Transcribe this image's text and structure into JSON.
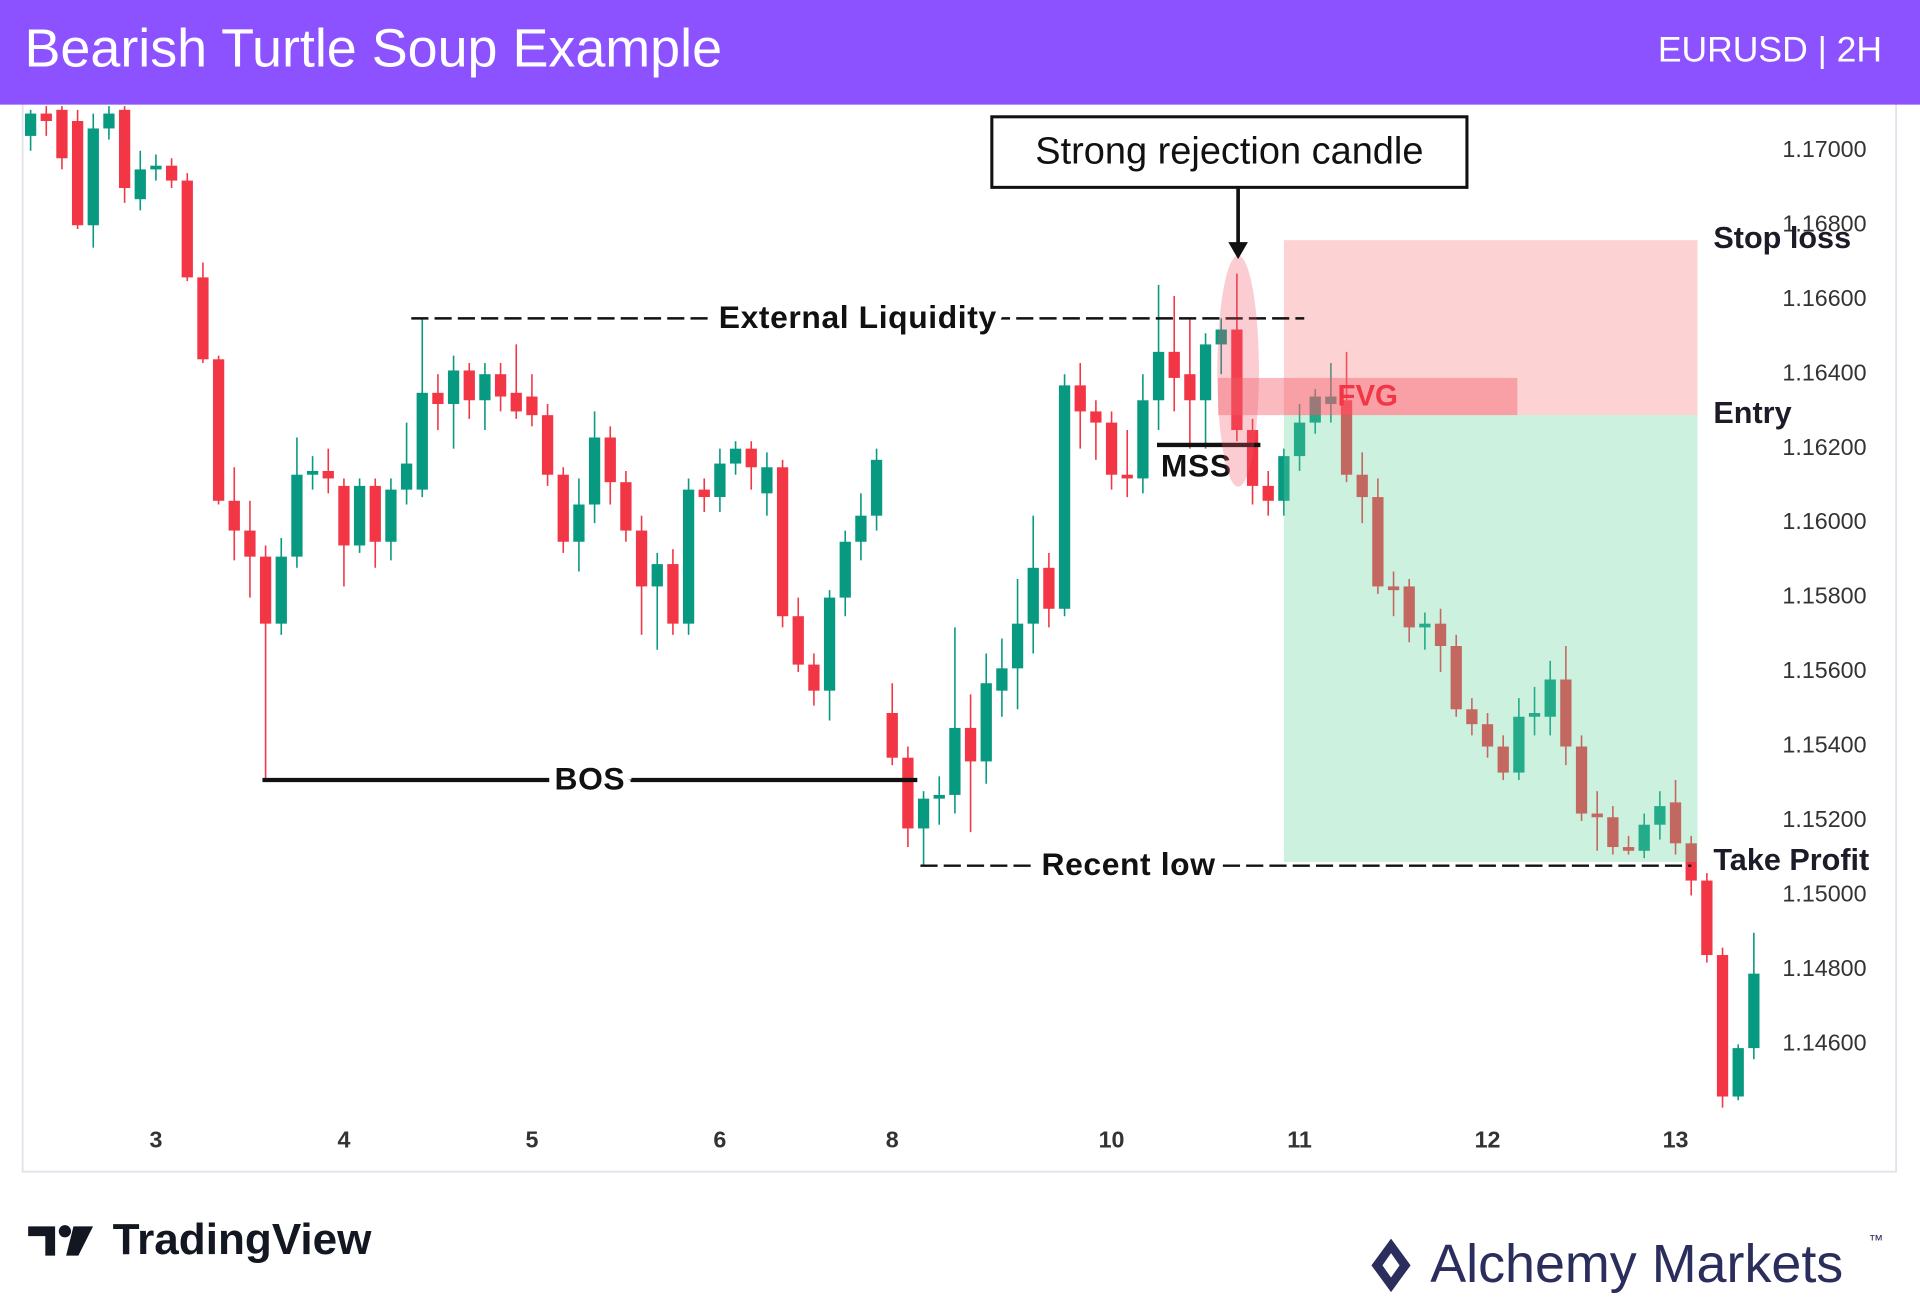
{
  "header": {
    "title": "Bearish Turtle Soup Example",
    "symbol": "EURUSD | 2H"
  },
  "chart_data": {
    "type": "candlestick",
    "up_color": "#089981",
    "down_color": "#f23645",
    "xlim": [
      -0.5,
      110.6
    ],
    "ylim": [
      1.14268,
      1.17124
    ],
    "yticks": [
      {
        "value": 1.17,
        "label": "1.17000"
      },
      {
        "value": 1.168,
        "label": "1.16800"
      },
      {
        "value": 1.166,
        "label": "1.16600"
      },
      {
        "value": 1.164,
        "label": "1.16400"
      },
      {
        "value": 1.162,
        "label": "1.16200"
      },
      {
        "value": 1.16,
        "label": "1.16000"
      },
      {
        "value": 1.158,
        "label": "1.15800"
      },
      {
        "value": 1.156,
        "label": "1.15600"
      },
      {
        "value": 1.154,
        "label": "1.15400"
      },
      {
        "value": 1.152,
        "label": "1.15200"
      },
      {
        "value": 1.15,
        "label": "1.15000"
      },
      {
        "value": 1.148,
        "label": "1.14800"
      },
      {
        "value": 1.146,
        "label": "1.14600"
      }
    ],
    "xticks": [
      {
        "value": 8,
        "label": "3"
      },
      {
        "value": 20,
        "label": "4"
      },
      {
        "value": 32,
        "label": "5"
      },
      {
        "value": 44,
        "label": "6"
      },
      {
        "value": 55,
        "label": "8"
      },
      {
        "value": 69,
        "label": "10"
      },
      {
        "value": 81,
        "label": "11"
      },
      {
        "value": 93,
        "label": "12"
      },
      {
        "value": 105,
        "label": "13"
      }
    ],
    "candles": [
      [
        1.1704,
        1.1711,
        1.17,
        1.171
      ],
      [
        1.171,
        1.1712,
        1.1704,
        1.1708
      ],
      [
        1.1711,
        1.1712,
        1.1695,
        1.1698
      ],
      [
        1.1708,
        1.1711,
        1.1679,
        1.168
      ],
      [
        1.168,
        1.171,
        1.1674,
        1.1706
      ],
      [
        1.1706,
        1.1712,
        1.1703,
        1.171
      ],
      [
        1.1711,
        1.1712,
        1.1686,
        1.169
      ],
      [
        1.1687,
        1.17,
        1.1684,
        1.1695
      ],
      [
        1.1695,
        1.1699,
        1.1692,
        1.1696
      ],
      [
        1.1696,
        1.1698,
        1.169,
        1.1692
      ],
      [
        1.1692,
        1.1694,
        1.1665,
        1.1666
      ],
      [
        1.1666,
        1.167,
        1.1643,
        1.1644
      ],
      [
        1.1644,
        1.1645,
        1.1605,
        1.1606
      ],
      [
        1.1606,
        1.1615,
        1.159,
        1.1598
      ],
      [
        1.1598,
        1.1606,
        1.158,
        1.1591
      ],
      [
        1.1591,
        1.1594,
        1.1531,
        1.1573
      ],
      [
        1.1573,
        1.1596,
        1.157,
        1.1591
      ],
      [
        1.1591,
        1.1623,
        1.1588,
        1.1613
      ],
      [
        1.1613,
        1.1618,
        1.1609,
        1.1614
      ],
      [
        1.1614,
        1.162,
        1.1608,
        1.1612
      ],
      [
        1.161,
        1.1612,
        1.1583,
        1.1594
      ],
      [
        1.1594,
        1.1612,
        1.1592,
        1.161
      ],
      [
        1.161,
        1.1612,
        1.1588,
        1.1595
      ],
      [
        1.1595,
        1.1612,
        1.159,
        1.1609
      ],
      [
        1.1609,
        1.1627,
        1.1605,
        1.1616
      ],
      [
        1.1609,
        1.1655,
        1.1607,
        1.1635
      ],
      [
        1.1635,
        1.164,
        1.1625,
        1.1632
      ],
      [
        1.1632,
        1.1645,
        1.162,
        1.1641
      ],
      [
        1.1641,
        1.1643,
        1.1628,
        1.1633
      ],
      [
        1.1633,
        1.1643,
        1.1625,
        1.164
      ],
      [
        1.164,
        1.1643,
        1.163,
        1.1634
      ],
      [
        1.1635,
        1.1648,
        1.1628,
        1.163
      ],
      [
        1.1634,
        1.164,
        1.1626,
        1.1629
      ],
      [
        1.1629,
        1.1632,
        1.161,
        1.1613
      ],
      [
        1.1613,
        1.1615,
        1.1592,
        1.1595
      ],
      [
        1.1595,
        1.1612,
        1.1587,
        1.1605
      ],
      [
        1.1605,
        1.163,
        1.16,
        1.1623
      ],
      [
        1.1623,
        1.1626,
        1.1605,
        1.1611
      ],
      [
        1.1611,
        1.1614,
        1.1595,
        1.1598
      ],
      [
        1.1598,
        1.1602,
        1.157,
        1.1583
      ],
      [
        1.1583,
        1.1592,
        1.1566,
        1.1589
      ],
      [
        1.1589,
        1.1593,
        1.157,
        1.1573
      ],
      [
        1.1573,
        1.1612,
        1.157,
        1.1609
      ],
      [
        1.1609,
        1.1612,
        1.1603,
        1.1607
      ],
      [
        1.1607,
        1.162,
        1.1603,
        1.1616
      ],
      [
        1.1616,
        1.1622,
        1.1613,
        1.162
      ],
      [
        1.162,
        1.1622,
        1.1609,
        1.1615
      ],
      [
        1.1608,
        1.1619,
        1.1602,
        1.1615
      ],
      [
        1.1615,
        1.1617,
        1.1572,
        1.1575
      ],
      [
        1.1575,
        1.158,
        1.156,
        1.1562
      ],
      [
        1.1562,
        1.1565,
        1.1551,
        1.1555
      ],
      [
        1.1555,
        1.1582,
        1.1547,
        1.158
      ],
      [
        1.158,
        1.1598,
        1.1575,
        1.1595
      ],
      [
        1.1595,
        1.1608,
        1.159,
        1.1602
      ],
      [
        1.1602,
        1.162,
        1.1598,
        1.1617
      ],
      [
        1.1549,
        1.1557,
        1.1535,
        1.1537
      ],
      [
        1.1537,
        1.154,
        1.1513,
        1.1518
      ],
      [
        1.1518,
        1.1528,
        1.1508,
        1.1526
      ],
      [
        1.1526,
        1.1532,
        1.1519,
        1.1527
      ],
      [
        1.1527,
        1.1572,
        1.1522,
        1.1545
      ],
      [
        1.1545,
        1.1554,
        1.1517,
        1.1536
      ],
      [
        1.1536,
        1.1565,
        1.153,
        1.1557
      ],
      [
        1.1555,
        1.1569,
        1.1548,
        1.1561
      ],
      [
        1.1561,
        1.1585,
        1.155,
        1.1573
      ],
      [
        1.1573,
        1.1602,
        1.1565,
        1.1588
      ],
      [
        1.1588,
        1.1592,
        1.1572,
        1.1577
      ],
      [
        1.1577,
        1.164,
        1.1575,
        1.1637
      ],
      [
        1.1637,
        1.1643,
        1.162,
        1.163
      ],
      [
        1.163,
        1.1633,
        1.1617,
        1.1627
      ],
      [
        1.1627,
        1.163,
        1.1609,
        1.1613
      ],
      [
        1.1613,
        1.1625,
        1.1607,
        1.1612
      ],
      [
        1.1612,
        1.164,
        1.1608,
        1.1633
      ],
      [
        1.1633,
        1.1664,
        1.1625,
        1.1646
      ],
      [
        1.1646,
        1.1661,
        1.163,
        1.1639
      ],
      [
        1.164,
        1.1655,
        1.162,
        1.1633
      ],
      [
        1.1633,
        1.1651,
        1.162,
        1.1648
      ],
      [
        1.1648,
        1.1655,
        1.164,
        1.1652
      ],
      [
        1.1652,
        1.1667,
        1.1622,
        1.1625
      ],
      [
        1.1625,
        1.1628,
        1.1605,
        1.161
      ],
      [
        1.161,
        1.1614,
        1.1602,
        1.1606
      ],
      [
        1.1606,
        1.162,
        1.1602,
        1.1618
      ],
      [
        1.1618,
        1.1632,
        1.1614,
        1.1627
      ],
      [
        1.1627,
        1.1636,
        1.1624,
        1.1634
      ],
      [
        1.1632,
        1.1643,
        1.1627,
        1.1634
      ],
      [
        1.1633,
        1.1646,
        1.1611,
        1.1613
      ],
      [
        1.1613,
        1.1619,
        1.16,
        1.1607
      ],
      [
        1.1607,
        1.1612,
        1.1581,
        1.1583
      ],
      [
        1.1583,
        1.1587,
        1.1575,
        1.1582
      ],
      [
        1.1583,
        1.1585,
        1.1568,
        1.1572
      ],
      [
        1.1572,
        1.1576,
        1.1566,
        1.1573
      ],
      [
        1.1573,
        1.1577,
        1.156,
        1.1567
      ],
      [
        1.1567,
        1.157,
        1.1548,
        1.155
      ],
      [
        1.155,
        1.1553,
        1.1543,
        1.1546
      ],
      [
        1.1546,
        1.1549,
        1.1537,
        1.154
      ],
      [
        1.154,
        1.1543,
        1.1531,
        1.1533
      ],
      [
        1.1533,
        1.1553,
        1.1531,
        1.1548
      ],
      [
        1.1548,
        1.1556,
        1.1543,
        1.1549
      ],
      [
        1.1548,
        1.1563,
        1.1543,
        1.1558
      ],
      [
        1.1558,
        1.1567,
        1.1535,
        1.154
      ],
      [
        1.154,
        1.1543,
        1.152,
        1.1522
      ],
      [
        1.1522,
        1.1528,
        1.1512,
        1.1521
      ],
      [
        1.1521,
        1.1524,
        1.1511,
        1.1513
      ],
      [
        1.1513,
        1.1516,
        1.1511,
        1.1512
      ],
      [
        1.1512,
        1.1522,
        1.151,
        1.1519
      ],
      [
        1.1519,
        1.1528,
        1.1515,
        1.1524
      ],
      [
        1.1525,
        1.1531,
        1.1511,
        1.1514
      ],
      [
        1.1514,
        1.1516,
        1.15,
        1.1504
      ],
      [
        1.1504,
        1.1506,
        1.1482,
        1.1484
      ],
      [
        1.1484,
        1.1486,
        1.1443,
        1.1446
      ],
      [
        1.1446,
        1.146,
        1.1445,
        1.1459
      ],
      [
        1.1459,
        1.149,
        1.1456,
        1.1479
      ]
    ],
    "levels": [
      {
        "label": "External Liquidity",
        "value": 1.1655,
        "from": 24.3,
        "to": 81.3,
        "dashed": true
      },
      {
        "label": "BOS",
        "value": 1.1531,
        "from": 14.8,
        "to": 56.6,
        "dashed": false
      },
      {
        "label": "Recent low",
        "value": 1.1508,
        "from": 56.8,
        "to": 106,
        "dashed": true
      },
      {
        "label": "MSS",
        "value": 1.1621,
        "from": 71.9,
        "to": 78.5,
        "dashed": false
      }
    ],
    "trade": {
      "from": 80,
      "to": 106.4,
      "stop_loss": {
        "label": "Stop loss",
        "value": 1.1676
      },
      "entry": {
        "label": "Entry",
        "value": 1.1629
      },
      "take_profit": {
        "label": "Take Profit",
        "value": 1.1509
      }
    },
    "fvg": {
      "label": "FVG",
      "from": 75.8,
      "to": 94.9,
      "top": 1.1639,
      "bottom": 1.1629
    },
    "callout": {
      "label": "Strong rejection candle",
      "candle": 77
    }
  },
  "branding": {
    "tradingview": "TradingView",
    "alchemy": "Alchemy Markets",
    "trademark": "™"
  }
}
